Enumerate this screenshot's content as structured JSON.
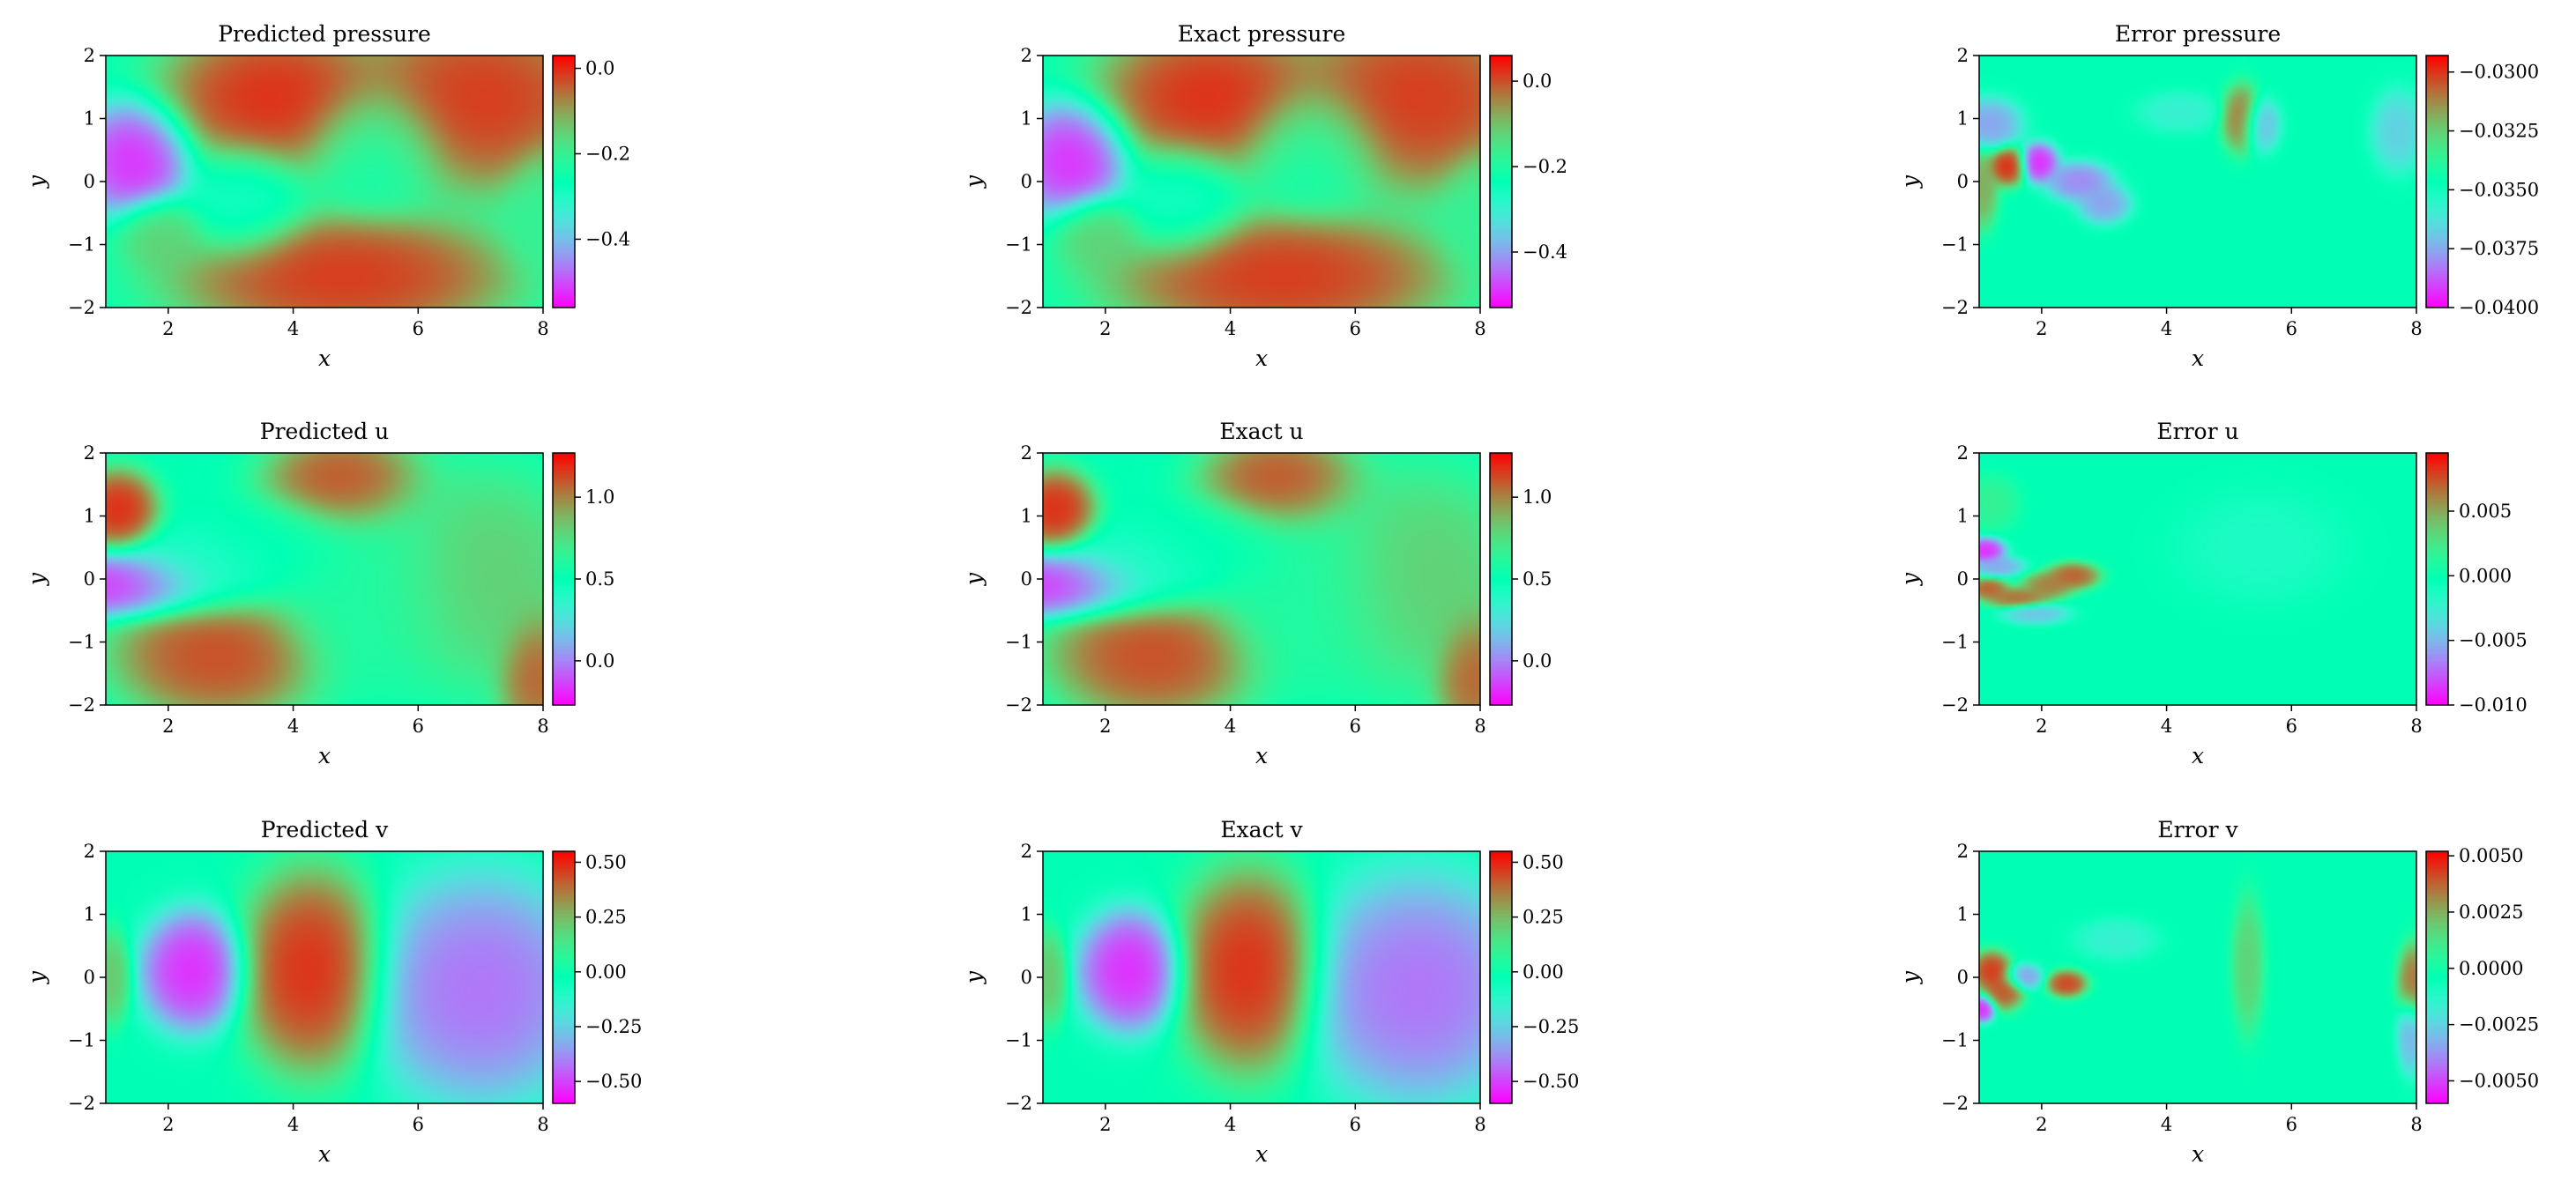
{
  "colormap": "rainbow",
  "colors": {
    "background": "#ffffff",
    "axis": "#000000"
  },
  "chart_data": [
    {
      "type": "heatmap",
      "title": "Predicted pressure",
      "xlabel": "x",
      "ylabel": "y",
      "xlim": [
        1,
        8
      ],
      "ylim": [
        -2,
        2
      ],
      "xticks": [
        "2",
        "4",
        "6",
        "8"
      ],
      "yticks": [
        "2",
        "1",
        "0",
        "−1",
        "−2"
      ],
      "colorbar": {
        "range": [
          -0.56,
          0.03
        ],
        "ticks": [
          0.0,
          -0.2,
          -0.4
        ],
        "tick_labels": [
          "0.0",
          "−0.2",
          "−0.4"
        ]
      },
      "features": [
        {
          "x": 1.5,
          "y": 0.35,
          "sx": 0.45,
          "sy": 0.45,
          "v": -0.56
        },
        {
          "x": 3.2,
          "y": -0.3,
          "sx": 0.5,
          "sy": 0.45,
          "v": -0.3
        },
        {
          "x": 5.3,
          "y": 0.5,
          "sx": 0.55,
          "sy": 0.5,
          "v": -0.25
        },
        {
          "x": 1.9,
          "y": -0.8,
          "sx": 0.35,
          "sy": 0.3,
          "v": -0.14
        },
        {
          "x": 8.0,
          "y": -0.5,
          "sx": 0.3,
          "sy": 0.5,
          "v": -0.2
        },
        {
          "x": 3.7,
          "y": 1.3,
          "sx": 0.9,
          "sy": 0.6,
          "v": 0.03
        },
        {
          "x": 7.0,
          "y": 1.3,
          "sx": 1.0,
          "sy": 0.7,
          "v": 0.02
        },
        {
          "x": 4.8,
          "y": -1.5,
          "sx": 1.3,
          "sy": 0.5,
          "v": 0.02
        }
      ]
    },
    {
      "type": "heatmap",
      "title": "Exact pressure",
      "xlabel": "x",
      "ylabel": "y",
      "xlim": [
        1,
        8
      ],
      "ylim": [
        -2,
        2
      ],
      "xticks": [
        "2",
        "4",
        "6",
        "8"
      ],
      "yticks": [
        "2",
        "1",
        "0",
        "−1",
        "−2"
      ],
      "colorbar": {
        "range": [
          -0.53,
          0.06
        ],
        "ticks": [
          0.0,
          -0.2,
          -0.4
        ],
        "tick_labels": [
          "0.0",
          "−0.2",
          "−0.4"
        ]
      },
      "features": [
        {
          "x": 1.5,
          "y": 0.35,
          "sx": 0.45,
          "sy": 0.45,
          "v": -0.53
        },
        {
          "x": 3.2,
          "y": -0.3,
          "sx": 0.5,
          "sy": 0.45,
          "v": -0.27
        },
        {
          "x": 5.3,
          "y": 0.5,
          "sx": 0.55,
          "sy": 0.5,
          "v": -0.22
        },
        {
          "x": 1.9,
          "y": -0.8,
          "sx": 0.35,
          "sy": 0.3,
          "v": -0.11
        },
        {
          "x": 8.0,
          "y": -0.5,
          "sx": 0.3,
          "sy": 0.5,
          "v": -0.17
        },
        {
          "x": 3.7,
          "y": 1.3,
          "sx": 0.9,
          "sy": 0.6,
          "v": 0.06
        },
        {
          "x": 7.0,
          "y": 1.3,
          "sx": 1.0,
          "sy": 0.7,
          "v": 0.05
        },
        {
          "x": 4.8,
          "y": -1.5,
          "sx": 1.3,
          "sy": 0.5,
          "v": 0.05
        }
      ]
    },
    {
      "type": "heatmap",
      "title": "Error pressure",
      "xlabel": "x",
      "ylabel": "y",
      "xlim": [
        1,
        8
      ],
      "ylim": [
        -2,
        2
      ],
      "xticks": [
        "2",
        "4",
        "6",
        "8"
      ],
      "yticks": [
        "2",
        "1",
        "0",
        "−1",
        "−2"
      ],
      "colorbar": {
        "range": [
          -0.04,
          -0.0293
        ],
        "ticks": [
          -0.03,
          -0.0325,
          -0.035,
          -0.0375,
          -0.04
        ],
        "tick_labels": [
          "−0.0300",
          "−0.0325",
          "−0.0350",
          "−0.0375",
          "−0.0400"
        ]
      },
      "features": [
        {
          "x": 1.45,
          "y": 0.25,
          "sx": 0.15,
          "sy": 0.15,
          "v": -0.0293
        },
        {
          "x": 1.95,
          "y": 0.3,
          "sx": 0.15,
          "sy": 0.15,
          "v": -0.04
        },
        {
          "x": 1.15,
          "y": 0.9,
          "sx": 0.25,
          "sy": 0.2,
          "v": -0.038
        },
        {
          "x": 1.05,
          "y": -0.1,
          "sx": 0.12,
          "sy": 0.3,
          "v": -0.0315
        },
        {
          "x": 2.6,
          "y": 0.0,
          "sx": 0.25,
          "sy": 0.15,
          "v": -0.0385
        },
        {
          "x": 3.0,
          "y": -0.35,
          "sx": 0.2,
          "sy": 0.15,
          "v": -0.038
        },
        {
          "x": 5.2,
          "y": 1.0,
          "sx": 0.15,
          "sy": 0.25,
          "v": -0.0305
        },
        {
          "x": 5.5,
          "y": 0.9,
          "sx": 0.15,
          "sy": 0.2,
          "v": -0.0375
        },
        {
          "x": 4.2,
          "y": 1.1,
          "sx": 0.3,
          "sy": 0.15,
          "v": -0.036
        },
        {
          "x": 7.7,
          "y": 0.8,
          "sx": 0.2,
          "sy": 0.3,
          "v": -0.037
        }
      ]
    },
    {
      "type": "heatmap",
      "title": "Predicted u",
      "xlabel": "x",
      "ylabel": "y",
      "xlim": [
        1,
        8
      ],
      "ylim": [
        -2,
        2
      ],
      "xticks": [
        "2",
        "4",
        "6",
        "8"
      ],
      "yticks": [
        "2",
        "1",
        "0",
        "−1",
        "−2"
      ],
      "colorbar": {
        "range": [
          -0.27,
          1.27
        ],
        "ticks": [
          1.0,
          0.5,
          0.0
        ],
        "tick_labels": [
          "1.0",
          "0.5",
          "0.0"
        ]
      },
      "features": [
        {
          "x": 1.3,
          "y": -0.1,
          "sx": 0.7,
          "sy": 0.25,
          "v": -0.27
        },
        {
          "x": 2.6,
          "y": 0.1,
          "sx": 0.7,
          "sy": 0.35,
          "v": 0.4
        },
        {
          "x": 3.8,
          "y": 0.6,
          "sx": 0.6,
          "sy": 0.35,
          "v": 0.5
        },
        {
          "x": 5.3,
          "y": -0.2,
          "sx": 0.8,
          "sy": 0.8,
          "v": 0.6
        },
        {
          "x": 7.0,
          "y": 0.0,
          "sx": 0.8,
          "sy": 0.8,
          "v": 0.85
        },
        {
          "x": 1.2,
          "y": 1.1,
          "sx": 0.3,
          "sy": 0.3,
          "v": 1.27
        },
        {
          "x": 2.8,
          "y": -1.2,
          "sx": 0.8,
          "sy": 0.5,
          "v": 1.2
        },
        {
          "x": 4.8,
          "y": 1.5,
          "sx": 0.6,
          "sy": 0.4,
          "v": 1.2
        },
        {
          "x": 7.9,
          "y": -1.5,
          "sx": 0.3,
          "sy": 0.5,
          "v": 1.15
        }
      ]
    },
    {
      "type": "heatmap",
      "title": "Exact u",
      "xlabel": "x",
      "ylabel": "y",
      "xlim": [
        1,
        8
      ],
      "ylim": [
        -2,
        2
      ],
      "xticks": [
        "2",
        "4",
        "6",
        "8"
      ],
      "yticks": [
        "2",
        "1",
        "0",
        "−1",
        "−2"
      ],
      "colorbar": {
        "range": [
          -0.27,
          1.27
        ],
        "ticks": [
          1.0,
          0.5,
          0.0
        ],
        "tick_labels": [
          "1.0",
          "0.5",
          "0.0"
        ]
      },
      "features": [
        {
          "x": 1.3,
          "y": -0.1,
          "sx": 0.7,
          "sy": 0.25,
          "v": -0.27
        },
        {
          "x": 2.6,
          "y": 0.1,
          "sx": 0.7,
          "sy": 0.35,
          "v": 0.4
        },
        {
          "x": 3.8,
          "y": 0.6,
          "sx": 0.6,
          "sy": 0.35,
          "v": 0.5
        },
        {
          "x": 5.3,
          "y": -0.2,
          "sx": 0.8,
          "sy": 0.8,
          "v": 0.6
        },
        {
          "x": 7.0,
          "y": 0.0,
          "sx": 0.8,
          "sy": 0.8,
          "v": 0.85
        },
        {
          "x": 1.2,
          "y": 1.1,
          "sx": 0.3,
          "sy": 0.3,
          "v": 1.27
        },
        {
          "x": 2.8,
          "y": -1.2,
          "sx": 0.8,
          "sy": 0.5,
          "v": 1.2
        },
        {
          "x": 4.8,
          "y": 1.5,
          "sx": 0.6,
          "sy": 0.4,
          "v": 1.2
        },
        {
          "x": 7.9,
          "y": -1.5,
          "sx": 0.3,
          "sy": 0.5,
          "v": 1.15
        }
      ]
    },
    {
      "type": "heatmap",
      "title": "Error u",
      "xlabel": "x",
      "ylabel": "y",
      "xlim": [
        1,
        8
      ],
      "ylim": [
        -2,
        2
      ],
      "xticks": [
        "2",
        "4",
        "6",
        "8"
      ],
      "yticks": [
        "2",
        "1",
        "0",
        "−1",
        "−2"
      ],
      "colorbar": {
        "range": [
          -0.01,
          0.0095
        ],
        "ticks": [
          0.005,
          0.0,
          -0.005,
          -0.01
        ],
        "tick_labels": [
          "0.005",
          "0.000",
          "−0.005",
          "−0.010"
        ]
      },
      "features": [
        {
          "x": 1.1,
          "y": 0.45,
          "sx": 0.15,
          "sy": 0.1,
          "v": -0.01
        },
        {
          "x": 1.15,
          "y": -0.15,
          "sx": 0.15,
          "sy": 0.08,
          "v": 0.008
        },
        {
          "x": 1.6,
          "y": -0.3,
          "sx": 0.25,
          "sy": 0.08,
          "v": 0.0075
        },
        {
          "x": 2.1,
          "y": -0.1,
          "sx": 0.2,
          "sy": 0.1,
          "v": 0.007
        },
        {
          "x": 2.5,
          "y": 0.05,
          "sx": 0.2,
          "sy": 0.1,
          "v": 0.008
        },
        {
          "x": 1.3,
          "y": 0.2,
          "sx": 0.2,
          "sy": 0.08,
          "v": -0.006
        },
        {
          "x": 1.9,
          "y": -0.55,
          "sx": 0.25,
          "sy": 0.08,
          "v": -0.005
        },
        {
          "x": 1.2,
          "y": 1.2,
          "sx": 0.2,
          "sy": 0.2,
          "v": 0.002
        },
        {
          "x": 5.5,
          "y": 0.5,
          "sx": 0.6,
          "sy": 0.4,
          "v": -0.0015
        }
      ]
    },
    {
      "type": "heatmap",
      "title": "Predicted v",
      "xlabel": "x",
      "ylabel": "y",
      "xlim": [
        1,
        8
      ],
      "ylim": [
        -2,
        2
      ],
      "xticks": [
        "2",
        "4",
        "6",
        "8"
      ],
      "yticks": [
        "2",
        "1",
        "0",
        "−1",
        "−2"
      ],
      "colorbar": {
        "range": [
          -0.6,
          0.55
        ],
        "ticks": [
          0.5,
          0.25,
          0.0,
          -0.25,
          -0.5
        ],
        "tick_labels": [
          "0.50",
          "0.25",
          "0.00",
          "−0.25",
          "−0.50"
        ]
      },
      "features": [
        {
          "x": 2.4,
          "y": 0.1,
          "sx": 0.4,
          "sy": 0.45,
          "v": -0.6
        },
        {
          "x": 4.3,
          "y": 0.1,
          "sx": 0.55,
          "sy": 0.75,
          "v": 0.55
        },
        {
          "x": 7.0,
          "y": -0.2,
          "sx": 0.85,
          "sy": 0.85,
          "v": -0.48
        },
        {
          "x": 1.1,
          "y": 0.0,
          "sx": 0.15,
          "sy": 0.35,
          "v": 0.25
        }
      ]
    },
    {
      "type": "heatmap",
      "title": "Exact v",
      "xlabel": "x",
      "ylabel": "y",
      "xlim": [
        1,
        8
      ],
      "ylim": [
        -2,
        2
      ],
      "xticks": [
        "2",
        "4",
        "6",
        "8"
      ],
      "yticks": [
        "2",
        "1",
        "0",
        "−1",
        "−2"
      ],
      "colorbar": {
        "range": [
          -0.6,
          0.55
        ],
        "ticks": [
          0.5,
          0.25,
          0.0,
          -0.25,
          -0.5
        ],
        "tick_labels": [
          "0.50",
          "0.25",
          "0.00",
          "−0.25",
          "−0.50"
        ]
      },
      "features": [
        {
          "x": 2.4,
          "y": 0.1,
          "sx": 0.4,
          "sy": 0.45,
          "v": -0.6
        },
        {
          "x": 4.3,
          "y": 0.1,
          "sx": 0.55,
          "sy": 0.75,
          "v": 0.55
        },
        {
          "x": 7.0,
          "y": -0.2,
          "sx": 0.85,
          "sy": 0.85,
          "v": -0.48
        },
        {
          "x": 1.1,
          "y": 0.0,
          "sx": 0.15,
          "sy": 0.35,
          "v": 0.25
        }
      ]
    },
    {
      "type": "heatmap",
      "title": "Error v",
      "xlabel": "x",
      "ylabel": "y",
      "xlim": [
        1,
        8
      ],
      "ylim": [
        -2,
        2
      ],
      "xticks": [
        "2",
        "4",
        "6",
        "8"
      ],
      "yticks": [
        "2",
        "1",
        "0",
        "−1",
        "−2"
      ],
      "colorbar": {
        "range": [
          -0.006,
          0.0052
        ],
        "ticks": [
          0.005,
          0.0025,
          0.0,
          -0.0025,
          -0.005
        ],
        "tick_labels": [
          "0.0050",
          "0.0025",
          "0.0000",
          "−0.0025",
          "−0.0050"
        ]
      },
      "features": [
        {
          "x": 1.2,
          "y": 0.1,
          "sx": 0.15,
          "sy": 0.15,
          "v": 0.005
        },
        {
          "x": 1.4,
          "y": -0.2,
          "sx": 0.15,
          "sy": 0.15,
          "v": 0.0045
        },
        {
          "x": 2.4,
          "y": -0.1,
          "sx": 0.15,
          "sy": 0.1,
          "v": 0.0048
        },
        {
          "x": 1.05,
          "y": -0.5,
          "sx": 0.1,
          "sy": 0.1,
          "v": -0.006
        },
        {
          "x": 1.7,
          "y": 0.0,
          "sx": 0.15,
          "sy": 0.1,
          "v": -0.004
        },
        {
          "x": 7.95,
          "y": -0.1,
          "sx": 0.12,
          "sy": 0.3,
          "v": 0.004
        },
        {
          "x": 7.9,
          "y": -0.9,
          "sx": 0.1,
          "sy": 0.3,
          "v": -0.0035
        },
        {
          "x": 5.3,
          "y": 0.2,
          "sx": 0.12,
          "sy": 0.5,
          "v": 0.002
        },
        {
          "x": 3.2,
          "y": 0.6,
          "sx": 0.3,
          "sy": 0.15,
          "v": -0.0018
        }
      ]
    }
  ]
}
